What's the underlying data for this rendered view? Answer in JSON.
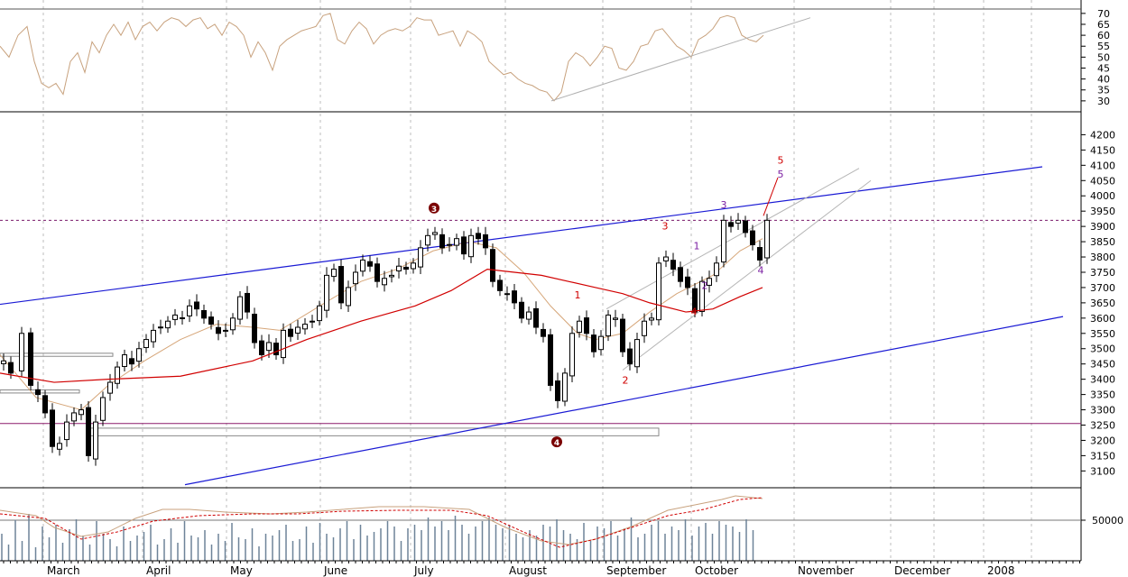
{
  "chart_data": {
    "type": "candlestick",
    "panels": {
      "oscillator": {
        "ylim": [
          25,
          72
        ],
        "yticks": [
          30,
          35,
          40,
          45,
          50,
          55,
          60,
          65,
          70
        ],
        "refs": [
          30,
          70
        ]
      },
      "price": {
        "ylim": [
          3045,
          4275
        ],
        "yticks": [
          3100,
          3150,
          3200,
          3250,
          3300,
          3350,
          3400,
          3450,
          3500,
          3550,
          3600,
          3650,
          3700,
          3750,
          3800,
          3850,
          3900,
          3950,
          4000,
          4050,
          4100,
          4150,
          4200
        ],
        "refs": [
          3255,
          3920
        ]
      },
      "volume": {
        "ytick_label": "50000"
      }
    },
    "x_labels": [
      "March",
      "April",
      "May",
      "June",
      "July",
      "August",
      "September",
      "October",
      "November",
      "December",
      "2008"
    ],
    "price": {
      "bias": [
        0.6,
        -0.3,
        0.4,
        0.1,
        -0.8,
        -0.2,
        0.5,
        -0.5,
        0.7,
        0.2,
        -0.3,
        0.4,
        -0.6,
        0.3,
        0.8,
        -0.2,
        0.1,
        -0.7,
        0.5,
        0.2,
        -0.4,
        0.6,
        -0.1,
        0.3,
        -0.5,
        0.4,
        0.7,
        -0.3,
        0.2,
        -0.6,
        0.5,
        0.1,
        -0.2,
        0.6,
        -0.4,
        0.3,
        0.8,
        -0.1,
        -0.5,
        0.2
      ],
      "closes": [
        [
          0,
          3460
        ],
        [
          8,
          3420
        ],
        [
          20,
          3550
        ],
        [
          30,
          3380
        ],
        [
          38,
          3350
        ],
        [
          46,
          3290
        ],
        [
          54,
          3180
        ],
        [
          62,
          3190
        ],
        [
          70,
          3260
        ],
        [
          78,
          3290
        ],
        [
          86,
          3300
        ],
        [
          94,
          3150
        ],
        [
          102,
          3260
        ],
        [
          110,
          3340
        ],
        [
          118,
          3390
        ],
        [
          126,
          3440
        ],
        [
          134,
          3480
        ],
        [
          142,
          3450
        ],
        [
          150,
          3500
        ],
        [
          158,
          3530
        ],
        [
          166,
          3560
        ],
        [
          174,
          3570
        ],
        [
          182,
          3590
        ],
        [
          190,
          3610
        ],
        [
          198,
          3600
        ],
        [
          206,
          3640
        ],
        [
          214,
          3630
        ],
        [
          222,
          3600
        ],
        [
          230,
          3580
        ],
        [
          238,
          3550
        ],
        [
          246,
          3560
        ],
        [
          254,
          3600
        ],
        [
          262,
          3670
        ],
        [
          270,
          3620
        ],
        [
          278,
          3520
        ],
        [
          286,
          3480
        ],
        [
          294,
          3520
        ],
        [
          302,
          3480
        ],
        [
          310,
          3560
        ],
        [
          318,
          3540
        ],
        [
          326,
          3570
        ],
        [
          334,
          3580
        ],
        [
          342,
          3590
        ],
        [
          350,
          3640
        ],
        [
          358,
          3740
        ],
        [
          366,
          3760
        ],
        [
          374,
          3650
        ],
        [
          382,
          3700
        ],
        [
          390,
          3750
        ],
        [
          398,
          3790
        ],
        [
          406,
          3770
        ],
        [
          414,
          3720
        ],
        [
          422,
          3730
        ],
        [
          430,
          3740
        ],
        [
          438,
          3770
        ],
        [
          446,
          3760
        ],
        [
          454,
          3780
        ],
        [
          462,
          3830
        ],
        [
          470,
          3870
        ],
        [
          478,
          3880
        ],
        [
          486,
          3830
        ],
        [
          494,
          3840
        ],
        [
          502,
          3860
        ],
        [
          510,
          3810
        ],
        [
          518,
          3870
        ],
        [
          526,
          3860
        ],
        [
          534,
          3830
        ],
        [
          542,
          3720
        ],
        [
          550,
          3690
        ],
        [
          558,
          3680
        ],
        [
          566,
          3650
        ],
        [
          574,
          3600
        ],
        [
          582,
          3620
        ],
        [
          590,
          3570
        ],
        [
          598,
          3540
        ],
        [
          606,
          3380
        ],
        [
          614,
          3330
        ],
        [
          622,
          3420
        ],
        [
          630,
          3550
        ],
        [
          638,
          3590
        ],
        [
          646,
          3550
        ],
        [
          654,
          3490
        ],
        [
          662,
          3540
        ],
        [
          670,
          3610
        ],
        [
          678,
          3600
        ],
        [
          686,
          3490
        ],
        [
          694,
          3450
        ],
        [
          702,
          3530
        ],
        [
          710,
          3590
        ],
        [
          718,
          3600
        ],
        [
          726,
          3780
        ],
        [
          734,
          3800
        ],
        [
          742,
          3760
        ],
        [
          750,
          3720
        ],
        [
          758,
          3700
        ],
        [
          766,
          3620
        ],
        [
          774,
          3720
        ],
        [
          782,
          3730
        ],
        [
          790,
          3780
        ],
        [
          798,
          3920
        ],
        [
          806,
          3900
        ],
        [
          814,
          3920
        ],
        [
          822,
          3880
        ],
        [
          830,
          3840
        ],
        [
          838,
          3790
        ],
        [
          846,
          3920
        ]
      ]
    },
    "ma_slow": [
      [
        0,
        3420
      ],
      [
        60,
        3390
      ],
      [
        120,
        3400
      ],
      [
        200,
        3410
      ],
      [
        280,
        3460
      ],
      [
        340,
        3530
      ],
      [
        400,
        3590
      ],
      [
        460,
        3640
      ],
      [
        500,
        3690
      ],
      [
        540,
        3760
      ],
      [
        570,
        3750
      ],
      [
        600,
        3740
      ],
      [
        630,
        3720
      ],
      [
        660,
        3700
      ],
      [
        690,
        3680
      ],
      [
        720,
        3650
      ],
      [
        760,
        3620
      ],
      [
        790,
        3630
      ],
      [
        820,
        3670
      ],
      [
        845,
        3700
      ]
    ],
    "ma_fast": [
      [
        0,
        3480
      ],
      [
        40,
        3340
      ],
      [
        90,
        3300
      ],
      [
        120,
        3380
      ],
      [
        160,
        3460
      ],
      [
        200,
        3530
      ],
      [
        240,
        3580
      ],
      [
        280,
        3570
      ],
      [
        310,
        3560
      ],
      [
        360,
        3650
      ],
      [
        400,
        3720
      ],
      [
        440,
        3760
      ],
      [
        480,
        3820
      ],
      [
        520,
        3850
      ],
      [
        550,
        3830
      ],
      [
        580,
        3750
      ],
      [
        610,
        3640
      ],
      [
        640,
        3550
      ],
      [
        660,
        3530
      ],
      [
        690,
        3550
      ],
      [
        720,
        3620
      ],
      [
        750,
        3680
      ],
      [
        790,
        3740
      ],
      [
        820,
        3820
      ],
      [
        845,
        3860
      ]
    ],
    "rsi": [
      [
        0,
        55
      ],
      [
        10,
        50
      ],
      [
        20,
        60
      ],
      [
        30,
        64
      ],
      [
        38,
        48
      ],
      [
        46,
        38
      ],
      [
        54,
        36
      ],
      [
        62,
        38
      ],
      [
        70,
        33
      ],
      [
        78,
        48
      ],
      [
        86,
        52
      ],
      [
        94,
        43
      ],
      [
        102,
        57
      ],
      [
        110,
        52
      ],
      [
        118,
        60
      ],
      [
        126,
        65
      ],
      [
        134,
        60
      ],
      [
        142,
        66
      ],
      [
        150,
        58
      ],
      [
        158,
        64
      ],
      [
        166,
        66
      ],
      [
        174,
        62
      ],
      [
        182,
        66
      ],
      [
        190,
        68
      ],
      [
        198,
        67
      ],
      [
        206,
        64
      ],
      [
        214,
        67
      ],
      [
        222,
        68
      ],
      [
        230,
        63
      ],
      [
        238,
        65
      ],
      [
        246,
        60
      ],
      [
        254,
        66
      ],
      [
        262,
        64
      ],
      [
        270,
        60
      ],
      [
        278,
        50
      ],
      [
        286,
        57
      ],
      [
        294,
        52
      ],
      [
        302,
        44
      ],
      [
        310,
        55
      ],
      [
        318,
        58
      ],
      [
        326,
        60
      ],
      [
        334,
        62
      ],
      [
        342,
        63
      ],
      [
        350,
        64
      ],
      [
        358,
        69
      ],
      [
        366,
        70
      ],
      [
        374,
        58
      ],
      [
        382,
        56
      ],
      [
        390,
        62
      ],
      [
        398,
        66
      ],
      [
        406,
        63
      ],
      [
        414,
        56
      ],
      [
        422,
        60
      ],
      [
        430,
        62
      ],
      [
        438,
        63
      ],
      [
        446,
        62
      ],
      [
        454,
        64
      ],
      [
        462,
        68
      ],
      [
        470,
        67
      ],
      [
        478,
        67
      ],
      [
        486,
        60
      ],
      [
        494,
        61
      ],
      [
        502,
        62
      ],
      [
        510,
        55
      ],
      [
        518,
        62
      ],
      [
        526,
        60
      ],
      [
        534,
        57
      ],
      [
        542,
        48
      ],
      [
        550,
        45
      ],
      [
        558,
        42
      ],
      [
        566,
        43
      ],
      [
        574,
        40
      ],
      [
        582,
        38
      ],
      [
        590,
        37
      ],
      [
        598,
        35
      ],
      [
        606,
        34
      ],
      [
        614,
        30
      ],
      [
        622,
        34
      ],
      [
        630,
        48
      ],
      [
        638,
        52
      ],
      [
        646,
        50
      ],
      [
        654,
        46
      ],
      [
        662,
        50
      ],
      [
        670,
        55
      ],
      [
        678,
        54
      ],
      [
        686,
        45
      ],
      [
        694,
        44
      ],
      [
        702,
        48
      ],
      [
        710,
        55
      ],
      [
        718,
        56
      ],
      [
        726,
        62
      ],
      [
        734,
        63
      ],
      [
        742,
        59
      ],
      [
        750,
        55
      ],
      [
        758,
        53
      ],
      [
        766,
        50
      ],
      [
        774,
        58
      ],
      [
        782,
        60
      ],
      [
        790,
        63
      ],
      [
        798,
        68
      ],
      [
        806,
        69
      ],
      [
        814,
        68
      ],
      [
        822,
        60
      ],
      [
        830,
        58
      ],
      [
        838,
        57
      ],
      [
        846,
        60
      ]
    ],
    "vol_heights": [
      30,
      18,
      45,
      22,
      52,
      15,
      38,
      26,
      40,
      20,
      35,
      46,
      28,
      18,
      44,
      30,
      24,
      16,
      38,
      22,
      28,
      32,
      40,
      18,
      24,
      36,
      20,
      44,
      28,
      26,
      34,
      18,
      30,
      22,
      42,
      26,
      24,
      36,
      16,
      30,
      28,
      34,
      40,
      22,
      24,
      38,
      20,
      42,
      30,
      26,
      36,
      44,
      24,
      40,
      28,
      32,
      36,
      44,
      38,
      22,
      36,
      40,
      34,
      48,
      38,
      44,
      34,
      50,
      40,
      30,
      38,
      44,
      48,
      40,
      36,
      40,
      30,
      26,
      34,
      28,
      40,
      38,
      46,
      34,
      30,
      24,
      42,
      22,
      38,
      36,
      44,
      28,
      36,
      48,
      26,
      30,
      40,
      44,
      30,
      38,
      34,
      46,
      28,
      38,
      42,
      30,
      44,
      40,
      38,
      32,
      46,
      34
    ],
    "vol_xs": {
      "start": 2,
      "step": 7.5,
      "count": 112
    },
    "vol_ma_solid": [
      [
        0,
        566
      ],
      [
        40,
        572
      ],
      [
        60,
        585
      ],
      [
        90,
        595
      ],
      [
        120,
        590
      ],
      [
        150,
        575
      ],
      [
        180,
        565
      ],
      [
        210,
        565
      ],
      [
        250,
        568
      ],
      [
        300,
        570
      ],
      [
        340,
        568
      ],
      [
        380,
        565
      ],
      [
        420,
        562
      ],
      [
        470,
        562
      ],
      [
        520,
        565
      ],
      [
        560,
        585
      ],
      [
        600,
        600
      ],
      [
        630,
        604
      ],
      [
        660,
        598
      ],
      [
        700,
        584
      ],
      [
        740,
        566
      ],
      [
        780,
        558
      ],
      [
        800,
        554
      ],
      [
        815,
        550
      ],
      [
        845,
        553
      ]
    ],
    "vol_ma_dashed": [
      [
        0,
        570
      ],
      [
        50,
        575
      ],
      [
        90,
        598
      ],
      [
        130,
        590
      ],
      [
        170,
        578
      ],
      [
        220,
        572
      ],
      [
        280,
        570
      ],
      [
        330,
        570
      ],
      [
        380,
        567
      ],
      [
        440,
        566
      ],
      [
        500,
        566
      ],
      [
        540,
        572
      ],
      [
        580,
        590
      ],
      [
        620,
        607
      ],
      [
        660,
        598
      ],
      [
        700,
        585
      ],
      [
        740,
        572
      ],
      [
        780,
        565
      ],
      [
        820,
        554
      ],
      [
        845,
        552
      ]
    ],
    "channel_upper": [
      [
        0,
        3645
      ],
      [
        1155,
        4095
      ]
    ],
    "channel_lower": [
      [
        205,
        3055
      ],
      [
        1178,
        3605
      ]
    ],
    "trend_rsi": [
      [
        611,
        30
      ],
      [
        898,
        68
      ]
    ],
    "fan_lines": [
      [
        [
          672,
          3630
        ],
        [
          952,
          4090
        ]
      ],
      [
        [
          690,
          3430
        ],
        [
          965,
          4050
        ]
      ]
    ],
    "rect_boxes": [
      {
        "x0": 0,
        "x1": 125,
        "y0": 3485,
        "y1": 3475
      },
      {
        "x0": 0,
        "x1": 88,
        "y0": 3365,
        "y1": 3355
      },
      {
        "x0": 100,
        "x1": 730,
        "y0": 3240,
        "y1": 3215
      }
    ],
    "wave_labels": [
      {
        "text": "3",
        "x": 737,
        "price": 3890,
        "color": "#d00000"
      },
      {
        "text": "1",
        "x": 772,
        "price": 3825,
        "color": "#7b1fa2"
      },
      {
        "text": "2",
        "x": 781,
        "price": 3695,
        "color": "#7b1fa2"
      },
      {
        "text": "3",
        "x": 802,
        "price": 3960,
        "color": "#7b1fa2"
      },
      {
        "text": "4",
        "x": 843,
        "price": 3745,
        "color": "#7b1fa2"
      },
      {
        "text": "5",
        "x": 865,
        "price": 4060,
        "color": "#7b1fa2"
      },
      {
        "text": "5",
        "x": 865,
        "price": 4105,
        "color": "#d00000"
      },
      {
        "text": "1",
        "x": 640,
        "price": 3665,
        "color": "#d00000"
      },
      {
        "text": "2",
        "x": 693,
        "price": 3385,
        "color": "#d00000"
      },
      {
        "text": "4",
        "x": 769,
        "price": 3610,
        "color": "#d00000"
      }
    ],
    "circle_markers": [
      {
        "text": "3",
        "x": 481,
        "price": 3960
      },
      {
        "text": "4",
        "x": 617,
        "price": 3195
      }
    ]
  }
}
